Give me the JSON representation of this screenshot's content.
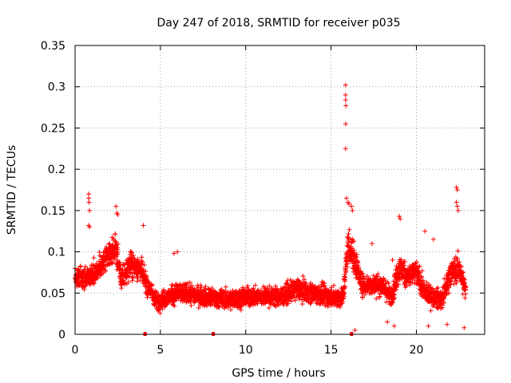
{
  "chart_data": {
    "type": "scatter",
    "title": "Day 247 of 2018, SRMTID for receiver p035",
    "xlabel": "GPS time / hours",
    "ylabel": "SRMTID / TECUs",
    "xlim": [
      0,
      24
    ],
    "ylim": [
      0,
      0.35
    ],
    "x_ticks": [
      0,
      5,
      10,
      15,
      20
    ],
    "x_tick_labels": [
      "0",
      "5",
      "10",
      "15",
      "20"
    ],
    "y_ticks": [
      0,
      0.05,
      0.1,
      0.15,
      0.2,
      0.25,
      0.3,
      0.35
    ],
    "y_tick_labels": [
      "0",
      "0.05",
      "0.1",
      "0.15",
      "0.2",
      "0.25",
      "0.3",
      "0.35"
    ],
    "grid": true,
    "marker": "+",
    "series_color": "#ff0000",
    "trend": [
      {
        "x": 0.0,
        "y": 0.07,
        "s": 0.012
      },
      {
        "x": 0.5,
        "y": 0.068,
        "s": 0.012
      },
      {
        "x": 1.0,
        "y": 0.072,
        "s": 0.013
      },
      {
        "x": 1.5,
        "y": 0.082,
        "s": 0.013
      },
      {
        "x": 2.0,
        "y": 0.095,
        "s": 0.014
      },
      {
        "x": 2.4,
        "y": 0.105,
        "s": 0.016
      },
      {
        "x": 2.7,
        "y": 0.065,
        "s": 0.012
      },
      {
        "x": 3.2,
        "y": 0.085,
        "s": 0.015
      },
      {
        "x": 3.8,
        "y": 0.08,
        "s": 0.014
      },
      {
        "x": 4.2,
        "y": 0.06,
        "s": 0.012
      },
      {
        "x": 4.8,
        "y": 0.04,
        "s": 0.01
      },
      {
        "x": 5.5,
        "y": 0.045,
        "s": 0.011
      },
      {
        "x": 6.0,
        "y": 0.05,
        "s": 0.012
      },
      {
        "x": 7.0,
        "y": 0.048,
        "s": 0.011
      },
      {
        "x": 8.0,
        "y": 0.044,
        "s": 0.011
      },
      {
        "x": 9.0,
        "y": 0.042,
        "s": 0.011
      },
      {
        "x": 10.0,
        "y": 0.045,
        "s": 0.011
      },
      {
        "x": 11.0,
        "y": 0.046,
        "s": 0.011
      },
      {
        "x": 12.0,
        "y": 0.045,
        "s": 0.011
      },
      {
        "x": 13.0,
        "y": 0.055,
        "s": 0.012
      },
      {
        "x": 14.0,
        "y": 0.05,
        "s": 0.012
      },
      {
        "x": 15.0,
        "y": 0.045,
        "s": 0.011
      },
      {
        "x": 15.7,
        "y": 0.045,
        "s": 0.012
      },
      {
        "x": 16.0,
        "y": 0.11,
        "s": 0.02
      },
      {
        "x": 16.4,
        "y": 0.09,
        "s": 0.018
      },
      {
        "x": 16.8,
        "y": 0.06,
        "s": 0.012
      },
      {
        "x": 17.5,
        "y": 0.06,
        "s": 0.012
      },
      {
        "x": 18.0,
        "y": 0.06,
        "s": 0.012
      },
      {
        "x": 18.5,
        "y": 0.045,
        "s": 0.012
      },
      {
        "x": 19.0,
        "y": 0.08,
        "s": 0.016
      },
      {
        "x": 19.5,
        "y": 0.07,
        "s": 0.014
      },
      {
        "x": 20.0,
        "y": 0.075,
        "s": 0.014
      },
      {
        "x": 20.5,
        "y": 0.05,
        "s": 0.012
      },
      {
        "x": 21.0,
        "y": 0.045,
        "s": 0.011
      },
      {
        "x": 21.5,
        "y": 0.042,
        "s": 0.011
      },
      {
        "x": 22.0,
        "y": 0.075,
        "s": 0.015
      },
      {
        "x": 22.5,
        "y": 0.08,
        "s": 0.016
      },
      {
        "x": 22.9,
        "y": 0.05,
        "s": 0.012
      }
    ],
    "highlights": [
      {
        "x": 15.85,
        "y": 0.302
      },
      {
        "x": 15.85,
        "y": 0.29
      },
      {
        "x": 15.85,
        "y": 0.284
      },
      {
        "x": 15.87,
        "y": 0.277
      },
      {
        "x": 15.86,
        "y": 0.255
      },
      {
        "x": 15.85,
        "y": 0.225
      },
      {
        "x": 15.9,
        "y": 0.165
      },
      {
        "x": 16.0,
        "y": 0.16
      },
      {
        "x": 16.05,
        "y": 0.158
      },
      {
        "x": 16.2,
        "y": 0.155
      },
      {
        "x": 16.25,
        "y": 0.15
      },
      {
        "x": 0.8,
        "y": 0.17
      },
      {
        "x": 0.8,
        "y": 0.165
      },
      {
        "x": 0.82,
        "y": 0.16
      },
      {
        "x": 0.85,
        "y": 0.15
      },
      {
        "x": 0.8,
        "y": 0.132
      },
      {
        "x": 0.85,
        "y": 0.13
      },
      {
        "x": 2.4,
        "y": 0.155
      },
      {
        "x": 2.45,
        "y": 0.147
      },
      {
        "x": 2.5,
        "y": 0.145
      },
      {
        "x": 22.35,
        "y": 0.178
      },
      {
        "x": 22.4,
        "y": 0.175
      },
      {
        "x": 22.35,
        "y": 0.16
      },
      {
        "x": 22.4,
        "y": 0.155
      },
      {
        "x": 22.45,
        "y": 0.15
      },
      {
        "x": 19.0,
        "y": 0.143
      },
      {
        "x": 19.05,
        "y": 0.14
      },
      {
        "x": 20.5,
        "y": 0.125
      },
      {
        "x": 21.0,
        "y": 0.115
      },
      {
        "x": 4.0,
        "y": 0.132
      },
      {
        "x": 5.8,
        "y": 0.098
      },
      {
        "x": 6.0,
        "y": 0.1
      },
      {
        "x": 17.4,
        "y": 0.11
      },
      {
        "x": 18.6,
        "y": 0.09
      },
      {
        "x": 18.3,
        "y": 0.015
      },
      {
        "x": 18.7,
        "y": 0.01
      },
      {
        "x": 21.8,
        "y": 0.012
      },
      {
        "x": 20.7,
        "y": 0.01
      },
      {
        "x": 16.4,
        "y": 0.005
      },
      {
        "x": 22.8,
        "y": 0.008
      }
    ],
    "axis_markers": [
      {
        "x": 4.1,
        "y": 0
      },
      {
        "x": 8.1,
        "y": 0
      },
      {
        "x": 16.2,
        "y": 0
      }
    ]
  }
}
